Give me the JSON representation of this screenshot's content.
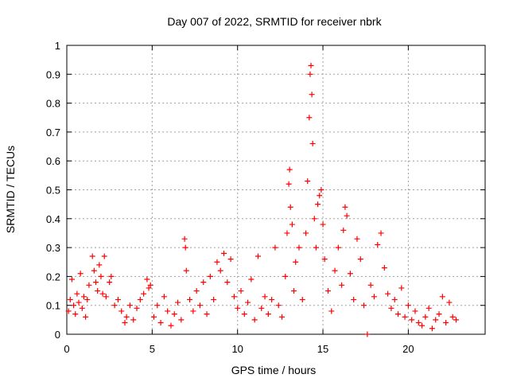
{
  "chart_data": {
    "type": "scatter",
    "title": "Day 007 of 2022, SRMTID for receiver nbrk",
    "xlabel": "GPS time / hours",
    "ylabel": "SRMTID / TECUs",
    "xlim": [
      0,
      24.5
    ],
    "ylim": [
      0,
      1
    ],
    "xticks": [
      "0",
      "5",
      "10",
      "15",
      "20"
    ],
    "yticks": [
      "0",
      "0.1",
      "0.2",
      "0.3",
      "0.4",
      "0.5",
      "0.6",
      "0.7",
      "0.8",
      "0.9",
      "1"
    ],
    "grid": true,
    "marker": "+",
    "color": "#ff0000",
    "series": [
      {
        "name": "nbrk",
        "points": [
          [
            0.1,
            0.08
          ],
          [
            0.2,
            0.12
          ],
          [
            0.3,
            0.19
          ],
          [
            0.4,
            0.1
          ],
          [
            0.5,
            0.07
          ],
          [
            0.6,
            0.14
          ],
          [
            0.7,
            0.11
          ],
          [
            0.8,
            0.21
          ],
          [
            0.9,
            0.09
          ],
          [
            1.0,
            0.13
          ],
          [
            1.1,
            0.06
          ],
          [
            1.2,
            0.12
          ],
          [
            1.3,
            0.17
          ],
          [
            1.5,
            0.27
          ],
          [
            1.6,
            0.22
          ],
          [
            1.7,
            0.18
          ],
          [
            1.8,
            0.15
          ],
          [
            1.9,
            0.24
          ],
          [
            2.0,
            0.2
          ],
          [
            2.1,
            0.14
          ],
          [
            2.2,
            0.27
          ],
          [
            2.3,
            0.13
          ],
          [
            2.5,
            0.18
          ],
          [
            2.6,
            0.2
          ],
          [
            2.8,
            0.1
          ],
          [
            3.0,
            0.12
          ],
          [
            3.2,
            0.08
          ],
          [
            3.4,
            0.04
          ],
          [
            3.5,
            0.06
          ],
          [
            3.7,
            0.1
          ],
          [
            3.9,
            0.05
          ],
          [
            4.1,
            0.09
          ],
          [
            4.3,
            0.12
          ],
          [
            4.5,
            0.14
          ],
          [
            4.7,
            0.19
          ],
          [
            4.8,
            0.16
          ],
          [
            4.9,
            0.17
          ],
          [
            5.1,
            0.06
          ],
          [
            5.3,
            0.1
          ],
          [
            5.5,
            0.04
          ],
          [
            5.7,
            0.13
          ],
          [
            5.9,
            0.08
          ],
          [
            6.1,
            0.03
          ],
          [
            6.3,
            0.07
          ],
          [
            6.5,
            0.11
          ],
          [
            6.7,
            0.05
          ],
          [
            6.9,
            0.33
          ],
          [
            6.95,
            0.3
          ],
          [
            7.0,
            0.22
          ],
          [
            7.2,
            0.12
          ],
          [
            7.4,
            0.08
          ],
          [
            7.6,
            0.15
          ],
          [
            7.8,
            0.1
          ],
          [
            8.0,
            0.18
          ],
          [
            8.2,
            0.07
          ],
          [
            8.4,
            0.2
          ],
          [
            8.6,
            0.12
          ],
          [
            8.8,
            0.25
          ],
          [
            9.0,
            0.22
          ],
          [
            9.2,
            0.28
          ],
          [
            9.4,
            0.18
          ],
          [
            9.6,
            0.26
          ],
          [
            9.8,
            0.13
          ],
          [
            10.0,
            0.09
          ],
          [
            10.2,
            0.15
          ],
          [
            10.4,
            0.07
          ],
          [
            10.6,
            0.11
          ],
          [
            10.8,
            0.19
          ],
          [
            11.0,
            0.05
          ],
          [
            11.2,
            0.27
          ],
          [
            11.4,
            0.09
          ],
          [
            11.6,
            0.13
          ],
          [
            11.8,
            0.07
          ],
          [
            12.0,
            0.12
          ],
          [
            12.2,
            0.3
          ],
          [
            12.4,
            0.1
          ],
          [
            12.6,
            0.06
          ],
          [
            12.8,
            0.2
          ],
          [
            12.9,
            0.35
          ],
          [
            13.0,
            0.52
          ],
          [
            13.05,
            0.57
          ],
          [
            13.1,
            0.44
          ],
          [
            13.2,
            0.38
          ],
          [
            13.3,
            0.15
          ],
          [
            13.4,
            0.25
          ],
          [
            13.6,
            0.3
          ],
          [
            13.8,
            0.12
          ],
          [
            14.0,
            0.35
          ],
          [
            14.1,
            0.53
          ],
          [
            14.2,
            0.75
          ],
          [
            14.25,
            0.9
          ],
          [
            14.3,
            0.93
          ],
          [
            14.35,
            0.83
          ],
          [
            14.4,
            0.66
          ],
          [
            14.5,
            0.4
          ],
          [
            14.6,
            0.3
          ],
          [
            14.7,
            0.45
          ],
          [
            14.8,
            0.48
          ],
          [
            14.9,
            0.5
          ],
          [
            15.0,
            0.38
          ],
          [
            15.1,
            0.26
          ],
          [
            15.3,
            0.15
          ],
          [
            15.5,
            0.08
          ],
          [
            15.7,
            0.22
          ],
          [
            15.9,
            0.3
          ],
          [
            16.1,
            0.17
          ],
          [
            16.2,
            0.36
          ],
          [
            16.3,
            0.44
          ],
          [
            16.4,
            0.41
          ],
          [
            16.6,
            0.21
          ],
          [
            16.8,
            0.12
          ],
          [
            17.0,
            0.33
          ],
          [
            17.2,
            0.26
          ],
          [
            17.4,
            0.1
          ],
          [
            17.6,
            0.0
          ],
          [
            17.8,
            0.17
          ],
          [
            18.0,
            0.13
          ],
          [
            18.2,
            0.31
          ],
          [
            18.4,
            0.35
          ],
          [
            18.6,
            0.23
          ],
          [
            18.8,
            0.14
          ],
          [
            19.0,
            0.09
          ],
          [
            19.2,
            0.12
          ],
          [
            19.4,
            0.07
          ],
          [
            19.6,
            0.16
          ],
          [
            19.8,
            0.06
          ],
          [
            20.0,
            0.1
          ],
          [
            20.2,
            0.05
          ],
          [
            20.4,
            0.08
          ],
          [
            20.6,
            0.04
          ],
          [
            20.8,
            0.03
          ],
          [
            21.0,
            0.06
          ],
          [
            21.2,
            0.09
          ],
          [
            21.4,
            0.02
          ],
          [
            21.6,
            0.05
          ],
          [
            21.8,
            0.07
          ],
          [
            22.0,
            0.13
          ],
          [
            22.2,
            0.04
          ],
          [
            22.4,
            0.11
          ],
          [
            22.6,
            0.06
          ],
          [
            22.8,
            0.05
          ]
        ]
      }
    ]
  }
}
